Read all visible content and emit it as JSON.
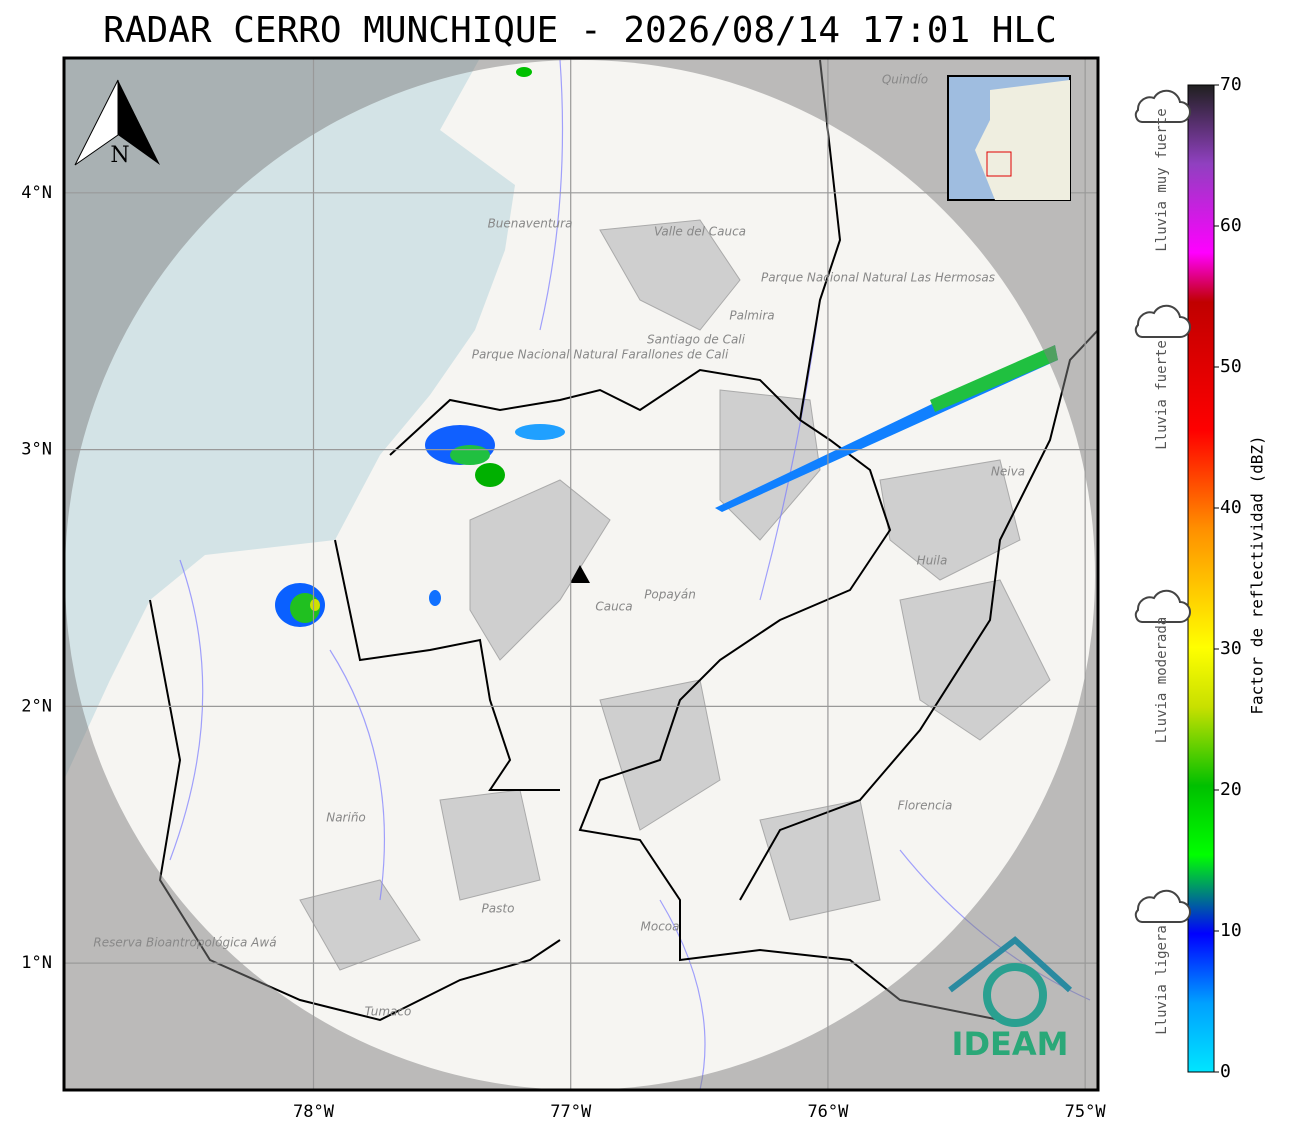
{
  "title": "RADAR CERRO MUNCHIQUE - 2026/08/14 17:01 HLC",
  "map": {
    "xlim": [
      -78.97,
      -74.95
    ],
    "ylim": [
      0.506,
      4.525
    ],
    "lat_ticks": [
      {
        "value": 1,
        "label": "1°N"
      },
      {
        "value": 2,
        "label": "2°N"
      },
      {
        "value": 3,
        "label": "3°N"
      },
      {
        "value": 4,
        "label": "4°N"
      }
    ],
    "lon_ticks": [
      {
        "value": -78,
        "label": "78°W"
      },
      {
        "value": -77,
        "label": "77°W"
      },
      {
        "value": -76,
        "label": "76°W"
      },
      {
        "value": -75,
        "label": "75°W"
      }
    ],
    "north": "N",
    "logo": "IDEAM",
    "places": [
      "Quindío",
      "Buenaventura",
      "Valle del Cauca",
      "Palmira",
      "Santiago de Cali",
      "Parque Nacional Natural Farallones de Cali",
      "Parque Nacional Natural Las Hermosas",
      "Neiva",
      "Huila",
      "Cauca",
      "Popayán",
      "Nariño",
      "Florencia",
      "Pasto",
      "Mocoa",
      "Reserva Bioantropológica Awá",
      "Tumaco"
    ]
  },
  "colorbar": {
    "label": "Factor de reflectividad (dBZ)",
    "lim": [
      0,
      70
    ],
    "ticks": [
      0,
      10,
      20,
      30,
      40,
      50,
      60,
      70
    ],
    "classes": [
      "Lluvia muy fuerte",
      "Lluvia fuerte",
      "Lluvia moderada",
      "Lluvia ligera"
    ]
  }
}
